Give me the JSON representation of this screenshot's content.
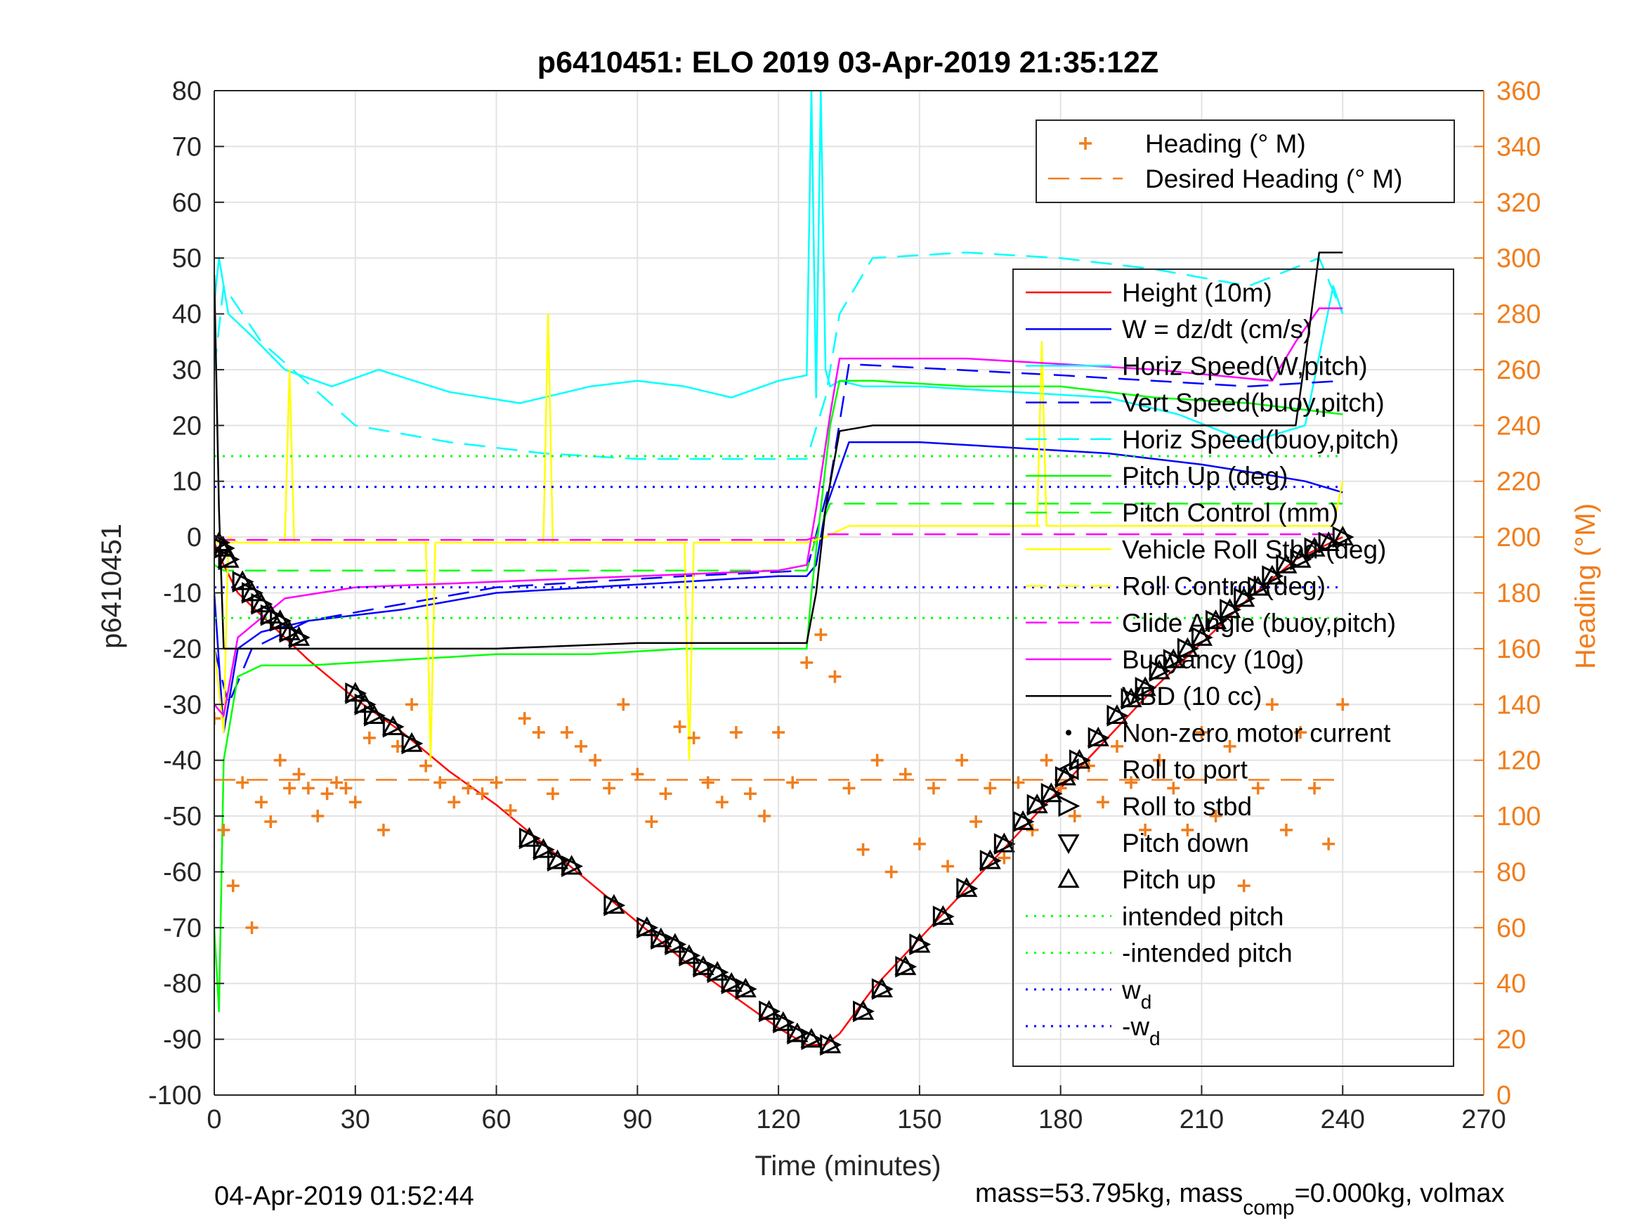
{
  "chart_data": {
    "type": "line",
    "title": "p6410451: ELO 2019 03-Apr-2019 21:35:12Z",
    "xlabel": "Time (minutes)",
    "ylabel": "p6410451",
    "ylabel_right": "Heading (°M)",
    "xlim": [
      0,
      270
    ],
    "ylim": [
      -100,
      80
    ],
    "ylim_right": [
      0,
      360
    ],
    "x_ticks": [
      "0",
      "30",
      "60",
      "90",
      "120",
      "150",
      "180",
      "210",
      "240",
      "270"
    ],
    "y_ticks": [
      "-100",
      "-90",
      "-80",
      "-70",
      "-60",
      "-50",
      "-40",
      "-30",
      "-20",
      "-10",
      "0",
      "10",
      "20",
      "30",
      "40",
      "50",
      "60",
      "70",
      "80"
    ],
    "y_ticks_right": [
      "0",
      "20",
      "40",
      "60",
      "80",
      "100",
      "120",
      "140",
      "160",
      "180",
      "200",
      "220",
      "240",
      "260",
      "280",
      "300",
      "320",
      "340",
      "360"
    ],
    "grid": true,
    "footer_left": "04-Apr-2019 01:52:44",
    "footer_right_pre": "mass=53.795kg, mass",
    "footer_right_sub": "comp",
    "footer_right_post": "=0.000kg, volmax",
    "legend_top": [
      {
        "label": "Heading (° M)",
        "color": "#f07d1c",
        "style": "plus"
      },
      {
        "label": "Desired Heading (° M)",
        "color": "#f07d1c",
        "style": "dash"
      }
    ],
    "legend_main": [
      {
        "label": "Height (10m)",
        "color": "#ff0000",
        "style": "solid"
      },
      {
        "label": "W = dz/dt (cm/s)",
        "color": "#0000ff",
        "style": "solid"
      },
      {
        "label": "Horiz Speed(W,pitch)",
        "color": "#00ffff",
        "style": "solid"
      },
      {
        "label": "Vert Speed(buoy,pitch)",
        "color": "#0000ff",
        "style": "dash"
      },
      {
        "label": "Horiz Speed(buoy,pitch)",
        "color": "#00ffff",
        "style": "dash"
      },
      {
        "label": "Pitch Up (deg)",
        "color": "#00ff00",
        "style": "solid"
      },
      {
        "label": "Pitch Control  (mm)",
        "color": "#00ff00",
        "style": "dash"
      },
      {
        "label": "Vehicle Roll Stbd (deg)",
        "color": "#ffff00",
        "style": "solid"
      },
      {
        "label": "Roll Control (deg)",
        "color": "#ffff00",
        "style": "dash"
      },
      {
        "label": "Glide Angle (buoy,pitch)",
        "color": "#ff00ff",
        "style": "dash"
      },
      {
        "label": "Buoyancy (10g)",
        "color": "#ff00ff",
        "style": "solid"
      },
      {
        "label": "VBD (10 cc)",
        "color": "#000000",
        "style": "solid"
      },
      {
        "label": "Non-zero motor current",
        "color": "#000000",
        "style": "dot"
      },
      {
        "label": "Roll to port",
        "color": "#000000",
        "style": "tri-left"
      },
      {
        "label": "Roll to stbd",
        "color": "#000000",
        "style": "tri-right"
      },
      {
        "label": "Pitch down",
        "color": "#000000",
        "style": "tri-down"
      },
      {
        "label": "Pitch up",
        "color": "#000000",
        "style": "tri-up"
      },
      {
        "label": "intended pitch",
        "color": "#00ff00",
        "style": "dotted"
      },
      {
        "label": "-intended pitch",
        "color": "#00ff00",
        "style": "dotted"
      },
      {
        "label": "w",
        "sub": "d",
        "color": "#0000ff",
        "style": "dotted"
      },
      {
        "label": "-w",
        "sub": "d",
        "color": "#0000ff",
        "style": "dotted"
      }
    ],
    "series": [
      {
        "name": "Height (10m)",
        "color": "#ff0000",
        "axis": "left",
        "x": [
          0,
          2,
          5,
          10,
          15,
          20,
          30,
          40,
          50,
          60,
          70,
          80,
          90,
          100,
          110,
          120,
          126,
          130,
          133,
          140,
          150,
          160,
          170,
          180,
          190,
          200,
          210,
          220,
          230,
          235,
          240
        ],
        "y": [
          -1,
          -5,
          -10,
          -14,
          -18,
          -22,
          -29,
          -35,
          -42,
          -48,
          -55,
          -62,
          -69,
          -76,
          -82,
          -88,
          -91,
          -91,
          -89,
          -81,
          -72,
          -63,
          -54,
          -45,
          -36,
          -27,
          -19,
          -11,
          -4,
          -2,
          0
        ]
      },
      {
        "name": "W = dz/dt (cm/s)",
        "color": "#0000ff",
        "axis": "left",
        "x": [
          0,
          2,
          5,
          10,
          20,
          40,
          60,
          80,
          100,
          120,
          126,
          128,
          130,
          135,
          150,
          170,
          190,
          210,
          225,
          232,
          240
        ],
        "y": [
          -10,
          -35,
          -20,
          -17,
          -15,
          -13,
          -10,
          -9,
          -8,
          -7,
          -7,
          -5,
          5,
          17,
          17,
          16,
          15,
          13,
          11,
          10,
          8
        ]
      },
      {
        "name": "Horiz Speed(W,pitch)",
        "color": "#00ffff",
        "axis": "left",
        "x": [
          0,
          1,
          3,
          8,
          15,
          25,
          35,
          50,
          65,
          80,
          90,
          100,
          110,
          120,
          126,
          127,
          128,
          129,
          130,
          131,
          133,
          138,
          150,
          170,
          190,
          205,
          220,
          232,
          238,
          240
        ],
        "y": [
          42,
          50,
          40,
          36,
          30,
          27,
          30,
          26,
          24,
          27,
          28,
          27,
          25,
          28,
          29,
          80,
          25,
          80,
          30,
          27,
          28,
          27,
          27,
          26,
          25,
          22,
          17,
          20,
          45,
          40
        ]
      },
      {
        "name": "Vert Speed(buoy,pitch)",
        "color": "#0000ff",
        "axis": "left",
        "dash": true,
        "x": [
          0,
          3,
          8,
          20,
          60,
          100,
          126,
          131,
          135,
          180,
          220,
          240
        ],
        "y": [
          -20,
          -30,
          -20,
          -15,
          -9,
          -7,
          -6,
          10,
          31,
          29,
          27,
          28
        ]
      },
      {
        "name": "Horiz Speed(buoy,pitch)",
        "color": "#00ffff",
        "axis": "left",
        "dash": true,
        "x": [
          0,
          2,
          10,
          30,
          50,
          70,
          90,
          110,
          126,
          130,
          133,
          140,
          160,
          180,
          200,
          220,
          235,
          240
        ],
        "y": [
          30,
          45,
          35,
          20,
          17,
          15,
          14,
          14,
          14,
          25,
          40,
          50,
          51,
          50,
          48,
          45,
          50,
          40
        ]
      },
      {
        "name": "Pitch Up (deg)",
        "color": "#00ff00",
        "axis": "left",
        "x": [
          0,
          1,
          2,
          5,
          10,
          20,
          40,
          60,
          80,
          100,
          120,
          126,
          127,
          129,
          131,
          133,
          140,
          160,
          180,
          200,
          220,
          230,
          240
        ],
        "y": [
          -70,
          -85,
          -40,
          -25,
          -23,
          -23,
          -22,
          -21,
          -21,
          -20,
          -20,
          -20,
          -10,
          5,
          20,
          28,
          28,
          27,
          27,
          25,
          24,
          23,
          22
        ]
      },
      {
        "name": "Pitch Control  (mm)",
        "color": "#00ff00",
        "axis": "left",
        "dash": true,
        "x": [
          0,
          2,
          5,
          126,
          128,
          131,
          240
        ],
        "y": [
          -5,
          -6,
          -6,
          -6,
          0,
          6,
          6
        ]
      },
      {
        "name": "Vehicle Roll Stbd (deg)",
        "color": "#ffff00",
        "axis": "left",
        "x": [
          0,
          2,
          3,
          5,
          15,
          16,
          17,
          30,
          45,
          46,
          47,
          60,
          70,
          71,
          72,
          90,
          100,
          101,
          102,
          126,
          130,
          135,
          160,
          175,
          176,
          177,
          200,
          220,
          238,
          240
        ],
        "y": [
          -20,
          -35,
          0,
          -1,
          -1,
          30,
          -1,
          -1,
          -1,
          -40,
          -1,
          -1,
          -1,
          40,
          -1,
          -1,
          -1,
          -40,
          -1,
          -1,
          0,
          2,
          2,
          2,
          35,
          2,
          2,
          2,
          2,
          10
        ]
      },
      {
        "name": "Roll Control (deg)",
        "color": "#ffff00",
        "axis": "left",
        "dash": true,
        "x": [
          0,
          5,
          126,
          130,
          135,
          240
        ],
        "y": [
          -1,
          -1,
          -1,
          0,
          2,
          2
        ]
      },
      {
        "name": "Glide Angle (buoy,pitch)",
        "color": "#ff00ff",
        "axis": "left",
        "dash": true,
        "x": [
          0,
          5,
          126,
          130,
          240
        ],
        "y": [
          -0.5,
          -0.5,
          -0.5,
          0.5,
          0.5
        ]
      },
      {
        "name": "Buoyancy (10g)",
        "color": "#ff00ff",
        "axis": "left",
        "x": [
          0,
          2,
          5,
          15,
          30,
          60,
          90,
          120,
          126,
          128,
          131,
          133,
          160,
          200,
          225,
          230,
          235,
          240
        ],
        "y": [
          -30,
          -32,
          -18,
          -11,
          -9,
          -8,
          -7,
          -6,
          -5,
          5,
          22,
          32,
          32,
          30,
          28,
          35,
          41,
          41
        ]
      },
      {
        "name": "VBD (10 cc)",
        "color": "#000000",
        "axis": "left",
        "x": [
          0,
          1,
          2,
          30,
          60,
          90,
          120,
          126,
          128,
          130,
          133,
          140,
          160,
          180,
          200,
          225,
          230,
          233,
          235,
          240
        ],
        "y": [
          47,
          5,
          -20,
          -20,
          -20,
          -19,
          -19,
          -19,
          -10,
          5,
          19,
          20,
          20,
          20,
          20,
          20,
          20,
          38,
          51,
          51
        ]
      },
      {
        "name": "Desired Heading (° M)",
        "color": "#f07d1c",
        "axis": "right",
        "dash": true,
        "x": [
          0,
          240
        ],
        "y": [
          113,
          113
        ]
      },
      {
        "name": "intended pitch",
        "color": "#00ff00",
        "axis": "left",
        "dotted": true,
        "x": [
          0,
          240
        ],
        "y": [
          14.5,
          14.5
        ]
      },
      {
        "name": "-intended pitch",
        "color": "#00ff00",
        "axis": "left",
        "dotted": true,
        "x": [
          0,
          240
        ],
        "y": [
          -14.5,
          -14.5
        ]
      },
      {
        "name": "w_d",
        "color": "#0000ff",
        "axis": "left",
        "dotted": true,
        "x": [
          0,
          240
        ],
        "y": [
          9,
          9
        ]
      },
      {
        "name": "-w_d",
        "color": "#0000ff",
        "axis": "left",
        "dotted": true,
        "x": [
          0,
          240
        ],
        "y": [
          -9,
          -9
        ]
      }
    ],
    "markers": {
      "roll_events": {
        "x": [
          1,
          2,
          3,
          6,
          8,
          10,
          12,
          14,
          16,
          18,
          30,
          32,
          34,
          38,
          42,
          67,
          70,
          73,
          76,
          85,
          92,
          95,
          98,
          101,
          104,
          107,
          110,
          113,
          118,
          121,
          124,
          127,
          131,
          138,
          142,
          147,
          150,
          155,
          160,
          165,
          168,
          172,
          175,
          178,
          181,
          184,
          188,
          192,
          195,
          198,
          201,
          204,
          207,
          210,
          213,
          216,
          219,
          222,
          225,
          228,
          231,
          234,
          237,
          240
        ],
        "y": [
          -1,
          -2,
          -4,
          -8,
          -10,
          -12,
          -14,
          -15,
          -17,
          -18,
          -28,
          -30,
          -32,
          -34,
          -37,
          -54,
          -56,
          -58,
          -59,
          -66,
          -70,
          -72,
          -73,
          -75,
          -77,
          -78,
          -80,
          -81,
          -85,
          -87,
          -89,
          -90,
          -91,
          -85,
          -81,
          -77,
          -73,
          -68,
          -63,
          -58,
          -55,
          -51,
          -48,
          -46,
          -43,
          -40,
          -36,
          -32,
          -29,
          -27,
          -24,
          -22,
          -20,
          -18,
          -15,
          -13,
          -11,
          -9,
          -7,
          -5,
          -4,
          -2,
          -1,
          0
        ]
      },
      "heading_points": {
        "x": [
          0,
          2,
          4,
          6,
          8,
          10,
          12,
          14,
          16,
          18,
          20,
          22,
          24,
          26,
          28,
          30,
          33,
          36,
          39,
          42,
          45,
          48,
          51,
          54,
          57,
          60,
          63,
          66,
          69,
          72,
          75,
          78,
          81,
          84,
          87,
          90,
          93,
          96,
          99,
          102,
          105,
          108,
          111,
          114,
          117,
          120,
          123,
          126,
          129,
          132,
          135,
          138,
          141,
          144,
          147,
          150,
          153,
          156,
          159,
          162,
          165,
          168,
          171,
          174,
          177,
          180,
          183,
          186,
          189,
          192,
          195,
          198,
          201,
          204,
          207,
          210,
          213,
          216,
          219,
          222,
          225,
          228,
          231,
          234,
          237,
          240
        ],
        "y": [
          135,
          95,
          75,
          112,
          60,
          105,
          98,
          120,
          110,
          115,
          110,
          100,
          108,
          112,
          110,
          105,
          128,
          95,
          125,
          140,
          118,
          112,
          105,
          110,
          108,
          112,
          102,
          135,
          130,
          108,
          130,
          125,
          120,
          110,
          140,
          115,
          98,
          108,
          132,
          128,
          112,
          105,
          130,
          108,
          100,
          130,
          112,
          155,
          165,
          150,
          110,
          88,
          120,
          80,
          115,
          90,
          110,
          82,
          120,
          98,
          110,
          85,
          112,
          95,
          120,
          110,
          100,
          118,
          105,
          125,
          112,
          95,
          120,
          110,
          95,
          130,
          100,
          125,
          75,
          110,
          140,
          95,
          130,
          110,
          90,
          140
        ]
      }
    }
  }
}
